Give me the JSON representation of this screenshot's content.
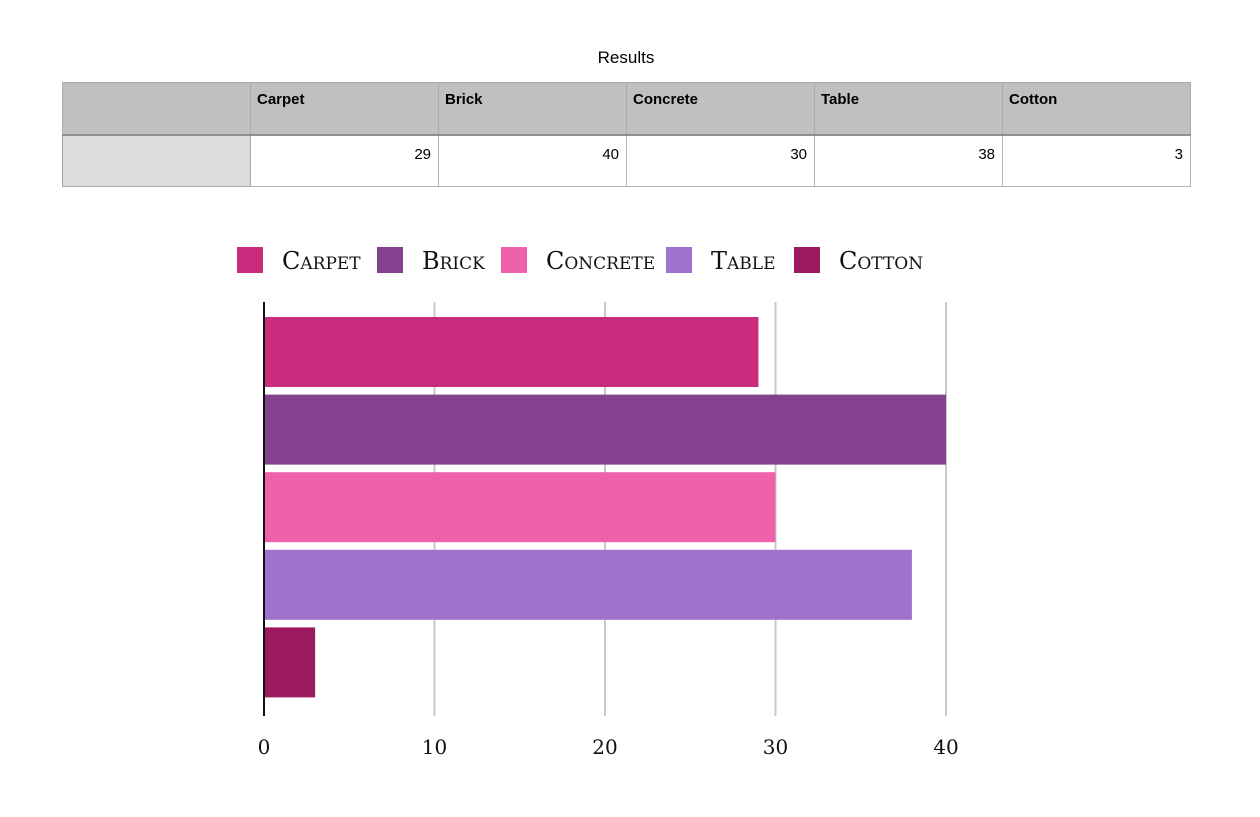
{
  "table": {
    "title": "Results",
    "headers": [
      "",
      "Carpet",
      "Brick",
      "Concrete",
      "Table",
      "Cotton"
    ],
    "row": [
      "",
      "29",
      "40",
      "30",
      "38",
      "3"
    ]
  },
  "chart_data": {
    "type": "bar",
    "orientation": "horizontal",
    "categories": [
      "Carpet",
      "Brick",
      "Concrete",
      "Table",
      "Cotton"
    ],
    "values": [
      29,
      40,
      30,
      38,
      3
    ],
    "colors": [
      "#c92b7d",
      "#83418e",
      "#ef61a8",
      "#9e72cd",
      "#9c1a5e"
    ],
    "legend": [
      "Carpet",
      "Brick",
      "Concrete",
      "Table",
      "Cotton"
    ],
    "legend_position": "top",
    "x_ticks": [
      "0",
      "10",
      "20",
      "30",
      "40"
    ],
    "xlim": [
      0,
      40
    ],
    "grid": true,
    "title": "",
    "xlabel": "",
    "ylabel": ""
  }
}
